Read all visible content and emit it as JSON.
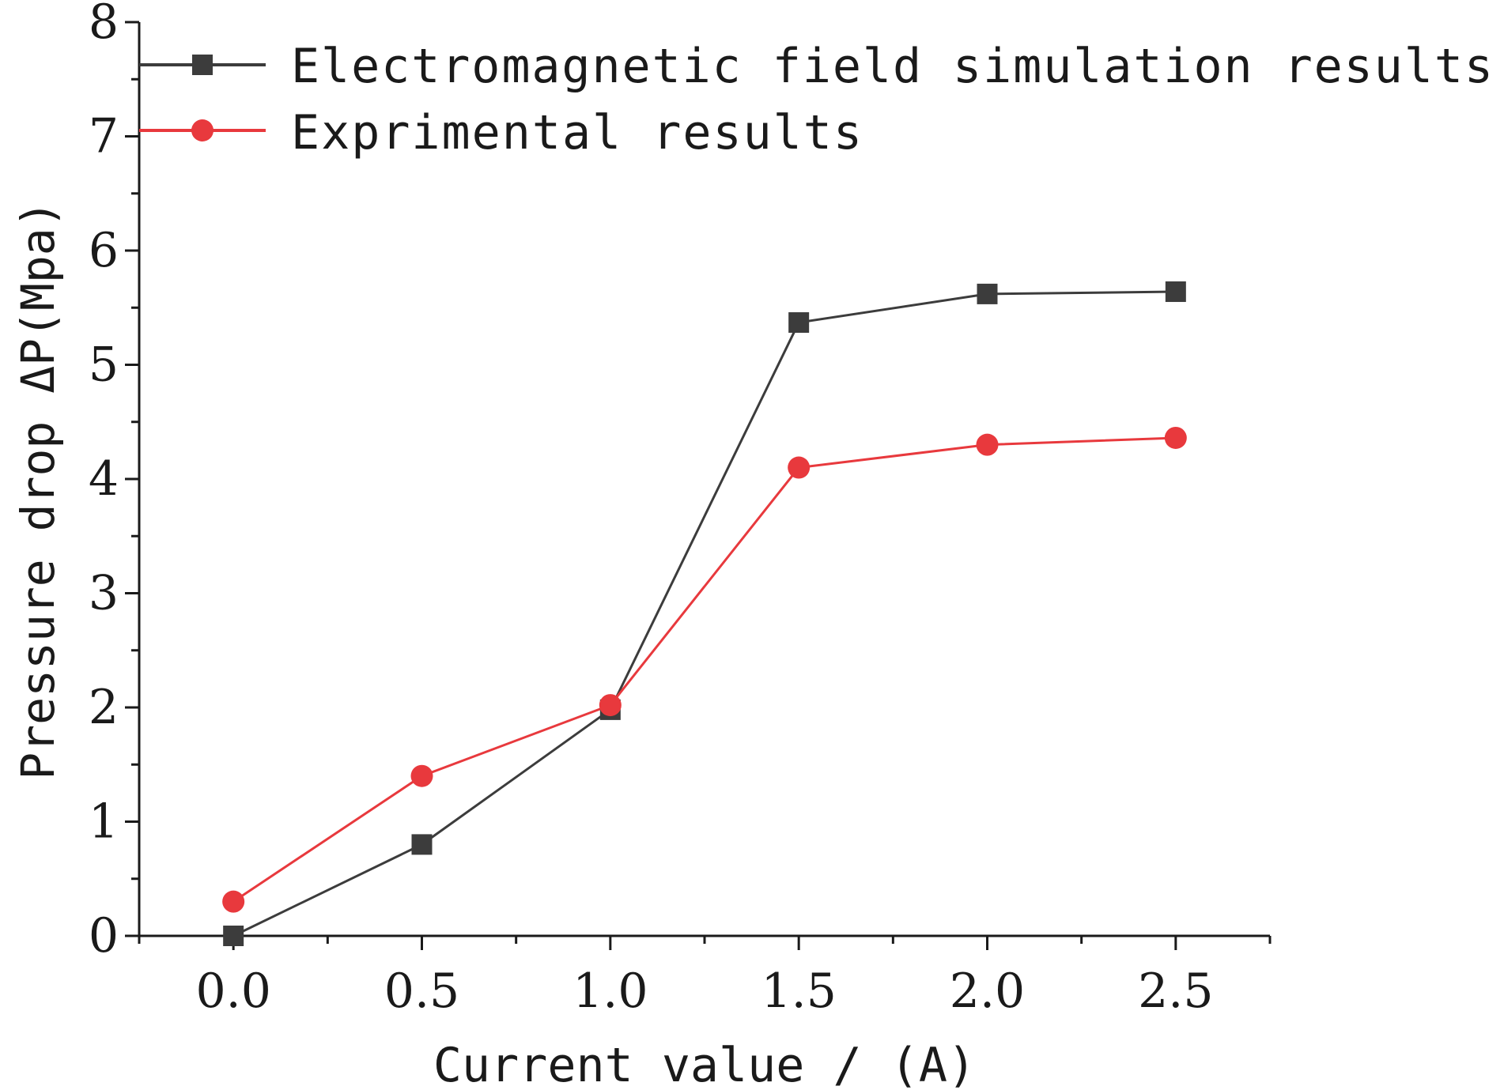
{
  "chart_data": {
    "type": "line",
    "title": "",
    "xlabel": "Current value / (A)",
    "ylabel": "Pressure drop ΔP(Mpa)",
    "x": [
      0.0,
      0.5,
      1.0,
      1.5,
      2.0,
      2.5
    ],
    "x_tick_labels": [
      "0.0",
      "0.5",
      "1.0",
      "1.5",
      "2.0",
      "2.5"
    ],
    "y_tick_labels": [
      "0",
      "1",
      "2",
      "3",
      "4",
      "5",
      "6",
      "7",
      "8"
    ],
    "xlim": [
      -0.25,
      2.75
    ],
    "ylim": [
      0,
      8
    ],
    "grid": false,
    "legend_position": "top-left",
    "series": [
      {
        "name": "Electromagnetic field simulation results",
        "color": "#3c3c3c",
        "marker": "square",
        "values": [
          0.0,
          0.8,
          1.98,
          5.37,
          5.62,
          5.64
        ]
      },
      {
        "name": "Exprimental results",
        "color": "#e8393d",
        "marker": "circle",
        "values": [
          0.3,
          1.4,
          2.02,
          4.1,
          4.3,
          4.36
        ]
      }
    ]
  }
}
